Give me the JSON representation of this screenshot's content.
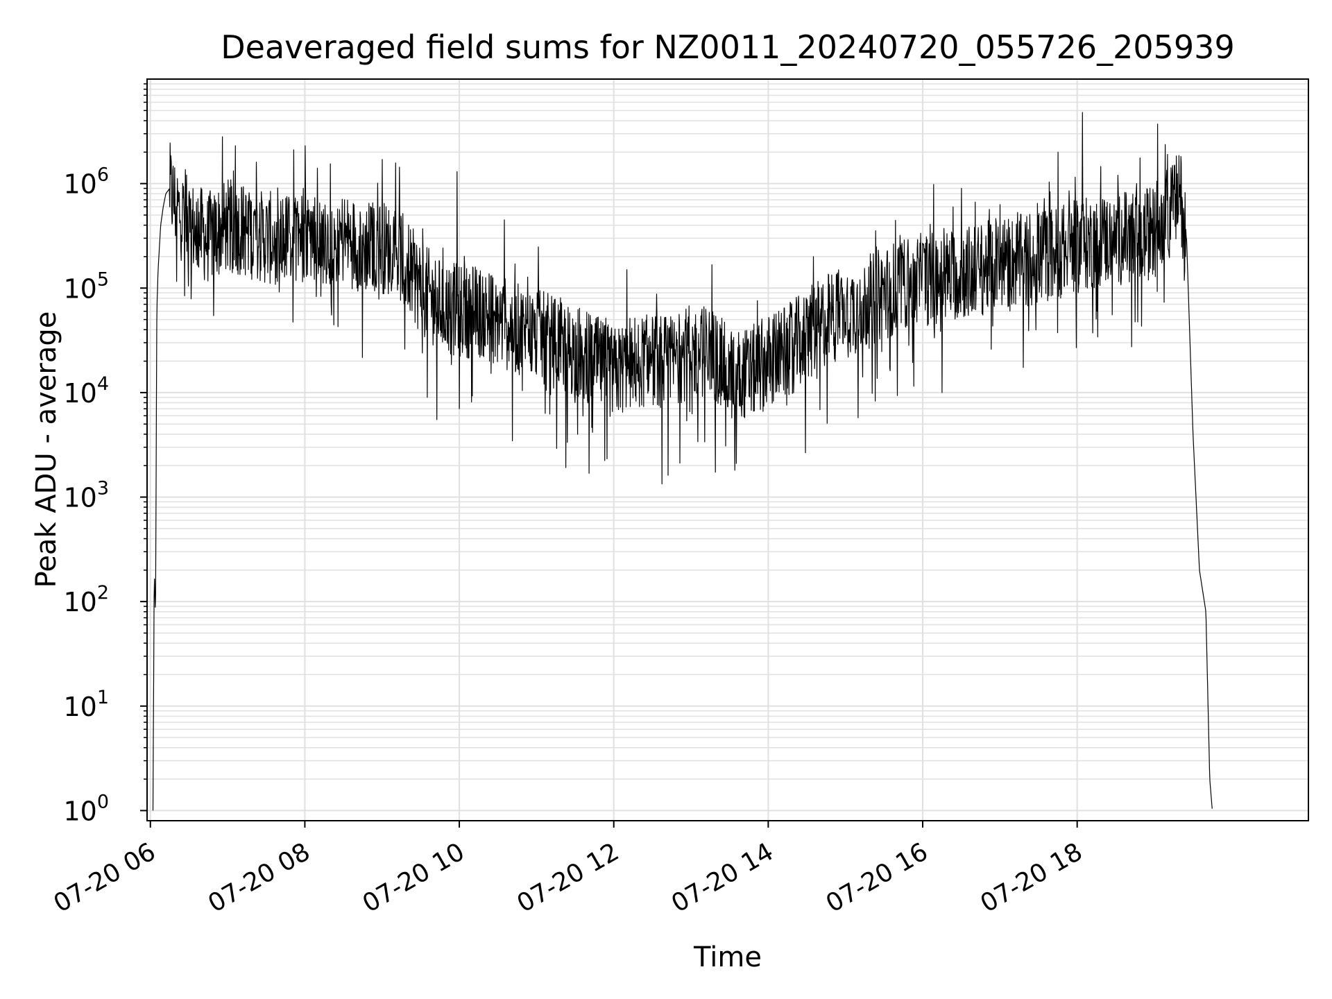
{
  "chart_data": {
    "type": "line",
    "title": "Deaveraged field sums for NZ0011_20240720_055726_205939",
    "xlabel": "Time",
    "ylabel": "Peak ADU - average",
    "x_scale": "time",
    "y_scale": "log",
    "xlim": [
      "2024-07-20T05:57:26",
      "2024-07-20T20:59:39"
    ],
    "ylim": [
      0.8,
      10000000
    ],
    "x_ticks": [
      {
        "t": "2024-07-20T06:00:00",
        "label": "07-20 06"
      },
      {
        "t": "2024-07-20T08:00:00",
        "label": "07-20 08"
      },
      {
        "t": "2024-07-20T10:00:00",
        "label": "07-20 10"
      },
      {
        "t": "2024-07-20T12:00:00",
        "label": "07-20 12"
      },
      {
        "t": "2024-07-20T14:00:00",
        "label": "07-20 14"
      },
      {
        "t": "2024-07-20T16:00:00",
        "label": "07-20 16"
      },
      {
        "t": "2024-07-20T18:00:00",
        "label": "07-20 18"
      }
    ],
    "y_ticks": [
      {
        "value": 1,
        "base": "10",
        "exp": "0"
      },
      {
        "value": 10,
        "base": "10",
        "exp": "1"
      },
      {
        "value": 100,
        "base": "10",
        "exp": "2"
      },
      {
        "value": 1000,
        "base": "10",
        "exp": "3"
      },
      {
        "value": 10000,
        "base": "10",
        "exp": "4"
      },
      {
        "value": 100000,
        "base": "10",
        "exp": "5"
      },
      {
        "value": 1000000,
        "base": "10",
        "exp": "6"
      }
    ],
    "grid": true,
    "legend": "none",
    "line_color": "#000000",
    "grid_color": "#e0e0e0",
    "series": [
      {
        "x": [
          "2024-07-20T06:02",
          "2024-07-20T06:03",
          "2024-07-20T06:04",
          "2024-07-20T06:05",
          "2024-07-20T06:06",
          "2024-07-20T06:08",
          "2024-07-20T06:10",
          "2024-07-20T06:12",
          "2024-07-20T06:15",
          "2024-07-20T06:20",
          "2024-07-20T06:30",
          "2024-07-20T06:45",
          "2024-07-20T07:00",
          "2024-07-20T07:15",
          "2024-07-20T07:30",
          "2024-07-20T07:45",
          "2024-07-20T08:00",
          "2024-07-20T08:15",
          "2024-07-20T08:30",
          "2024-07-20T08:45",
          "2024-07-20T09:00",
          "2024-07-20T09:15",
          "2024-07-20T09:30",
          "2024-07-20T09:45",
          "2024-07-20T10:00",
          "2024-07-20T10:15",
          "2024-07-20T10:30",
          "2024-07-20T10:45",
          "2024-07-20T11:00",
          "2024-07-20T11:15",
          "2024-07-20T11:30",
          "2024-07-20T11:45",
          "2024-07-20T12:00",
          "2024-07-20T12:15",
          "2024-07-20T12:30",
          "2024-07-20T12:45",
          "2024-07-20T13:00",
          "2024-07-20T13:15",
          "2024-07-20T13:30",
          "2024-07-20T13:45",
          "2024-07-20T14:00",
          "2024-07-20T14:15",
          "2024-07-20T14:30",
          "2024-07-20T14:45",
          "2024-07-20T15:00",
          "2024-07-20T15:15",
          "2024-07-20T15:30",
          "2024-07-20T15:45",
          "2024-07-20T16:00",
          "2024-07-20T16:15",
          "2024-07-20T16:30",
          "2024-07-20T16:45",
          "2024-07-20T17:00",
          "2024-07-20T17:15",
          "2024-07-20T17:30",
          "2024-07-20T17:45",
          "2024-07-20T18:00",
          "2024-07-20T18:15",
          "2024-07-20T18:30",
          "2024-07-20T18:45",
          "2024-07-20T19:00",
          "2024-07-20T19:15",
          "2024-07-20T19:20",
          "2024-07-20T19:25",
          "2024-07-20T19:30",
          "2024-07-20T19:35",
          "2024-07-20T19:40",
          "2024-07-20T19:43",
          "2024-07-20T19:45"
        ],
        "y": [
          1,
          200,
          70,
          60000,
          150000,
          400000,
          600000,
          800000,
          900000,
          600000,
          400000,
          300000,
          400000,
          350000,
          300000,
          300000,
          350000,
          300000,
          300000,
          250000,
          250000,
          200000,
          100000,
          70000,
          60000,
          60000,
          50000,
          40000,
          35000,
          30000,
          25000,
          20000,
          15000,
          20000,
          20000,
          20000,
          25000,
          25000,
          15000,
          15000,
          20000,
          25000,
          35000,
          50000,
          60000,
          70000,
          90000,
          110000,
          120000,
          130000,
          140000,
          150000,
          170000,
          180000,
          200000,
          220000,
          250000,
          280000,
          300000,
          300000,
          350000,
          600000,
          800000,
          300000,
          4000,
          200,
          80,
          2,
          1
        ],
        "spikes": [
          {
            "t": "2024-07-20T07:06",
            "v": 2300000
          },
          {
            "t": "2024-07-20T08:00",
            "v": 2300000
          },
          {
            "t": "2024-07-20T09:00",
            "v": 1700000
          },
          {
            "t": "2024-07-20T09:58",
            "v": 1300000
          },
          {
            "t": "2024-07-20T10:35",
            "v": 450000
          },
          {
            "t": "2024-07-20T12:10",
            "v": 150000
          },
          {
            "t": "2024-07-20T14:35",
            "v": 200000
          },
          {
            "t": "2024-07-20T16:30",
            "v": 900000
          },
          {
            "t": "2024-07-20T17:45",
            "v": 2000000
          },
          {
            "t": "2024-07-20T18:04",
            "v": 4800000
          },
          {
            "t": "2024-07-20T19:10",
            "v": 1900000
          },
          {
            "t": "2024-07-20T09:35",
            "v": 9000
          },
          {
            "t": "2024-07-20T10:00",
            "v": 7000
          },
          {
            "t": "2024-07-20T13:35",
            "v": 2100
          },
          {
            "t": "2024-07-20T16:15",
            "v": 10000
          }
        ]
      }
    ]
  }
}
